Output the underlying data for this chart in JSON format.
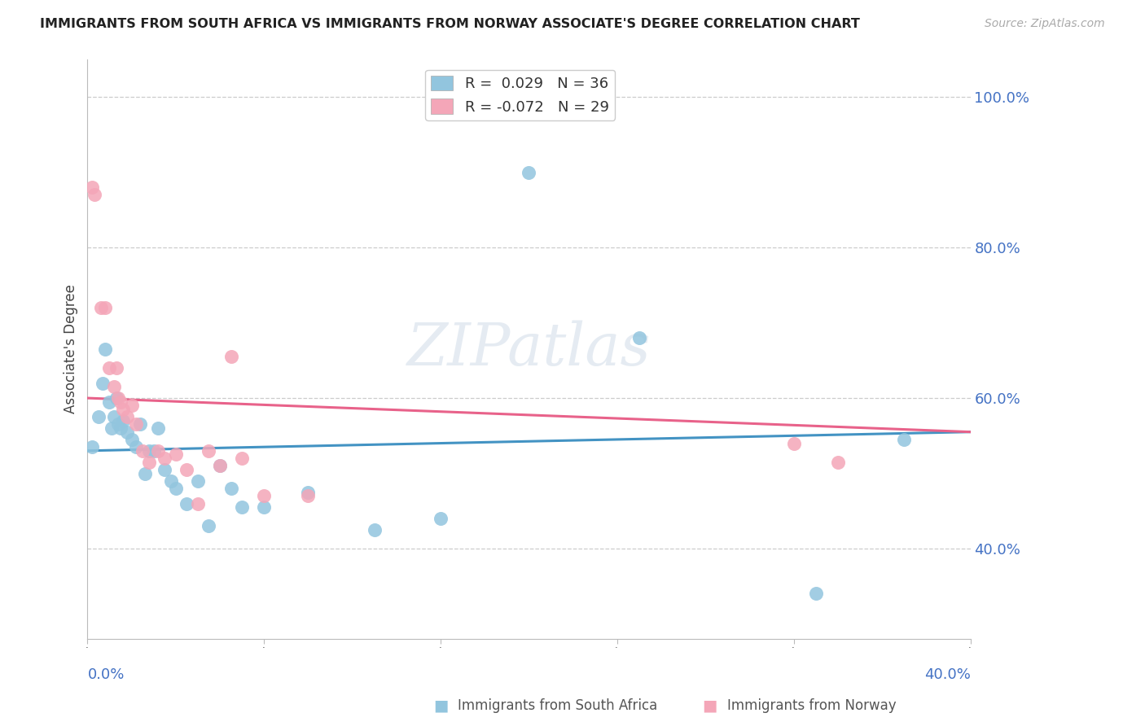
{
  "title": "IMMIGRANTS FROM SOUTH AFRICA VS IMMIGRANTS FROM NORWAY ASSOCIATE'S DEGREE CORRELATION CHART",
  "source": "Source: ZipAtlas.com",
  "ylabel": "Associate's Degree",
  "yticks": [
    0.4,
    0.6,
    0.8,
    1.0
  ],
  "ytick_labels": [
    "40.0%",
    "60.0%",
    "80.0%",
    "100.0%"
  ],
  "xlim": [
    0.0,
    0.4
  ],
  "ylim": [
    0.28,
    1.05
  ],
  "color_blue": "#92c5de",
  "color_pink": "#f4a6b8",
  "trendline_blue": "#4393c3",
  "trendline_pink": "#e8628a",
  "watermark": "ZIPatlas",
  "south_africa_x": [
    0.002,
    0.005,
    0.007,
    0.008,
    0.01,
    0.011,
    0.012,
    0.013,
    0.014,
    0.015,
    0.016,
    0.018,
    0.02,
    0.022,
    0.024,
    0.026,
    0.028,
    0.03,
    0.032,
    0.035,
    0.038,
    0.04,
    0.045,
    0.05,
    0.055,
    0.06,
    0.065,
    0.07,
    0.08,
    0.1,
    0.13,
    0.16,
    0.2,
    0.25,
    0.33,
    0.37
  ],
  "south_africa_y": [
    0.535,
    0.575,
    0.62,
    0.665,
    0.595,
    0.56,
    0.575,
    0.6,
    0.565,
    0.56,
    0.57,
    0.555,
    0.545,
    0.535,
    0.565,
    0.5,
    0.53,
    0.53,
    0.56,
    0.505,
    0.49,
    0.48,
    0.46,
    0.49,
    0.43,
    0.51,
    0.48,
    0.455,
    0.455,
    0.475,
    0.425,
    0.44,
    0.9,
    0.68,
    0.34,
    0.545
  ],
  "norway_x": [
    0.002,
    0.003,
    0.006,
    0.008,
    0.01,
    0.012,
    0.013,
    0.014,
    0.015,
    0.016,
    0.018,
    0.02,
    0.022,
    0.025,
    0.028,
    0.032,
    0.035,
    0.04,
    0.045,
    0.05,
    0.055,
    0.06,
    0.065,
    0.07,
    0.08,
    0.1,
    0.32,
    0.34
  ],
  "norway_y": [
    0.88,
    0.87,
    0.72,
    0.72,
    0.64,
    0.615,
    0.64,
    0.6,
    0.595,
    0.585,
    0.575,
    0.59,
    0.565,
    0.53,
    0.515,
    0.53,
    0.52,
    0.525,
    0.505,
    0.46,
    0.53,
    0.51,
    0.655,
    0.52,
    0.47,
    0.47,
    0.54,
    0.515
  ],
  "trendline_sa_x0": 0.0,
  "trendline_sa_y0": 0.53,
  "trendline_sa_x1": 0.4,
  "trendline_sa_y1": 0.555,
  "trendline_no_x0": 0.0,
  "trendline_no_y0": 0.6,
  "trendline_no_x1": 0.4,
  "trendline_no_y1": 0.555
}
